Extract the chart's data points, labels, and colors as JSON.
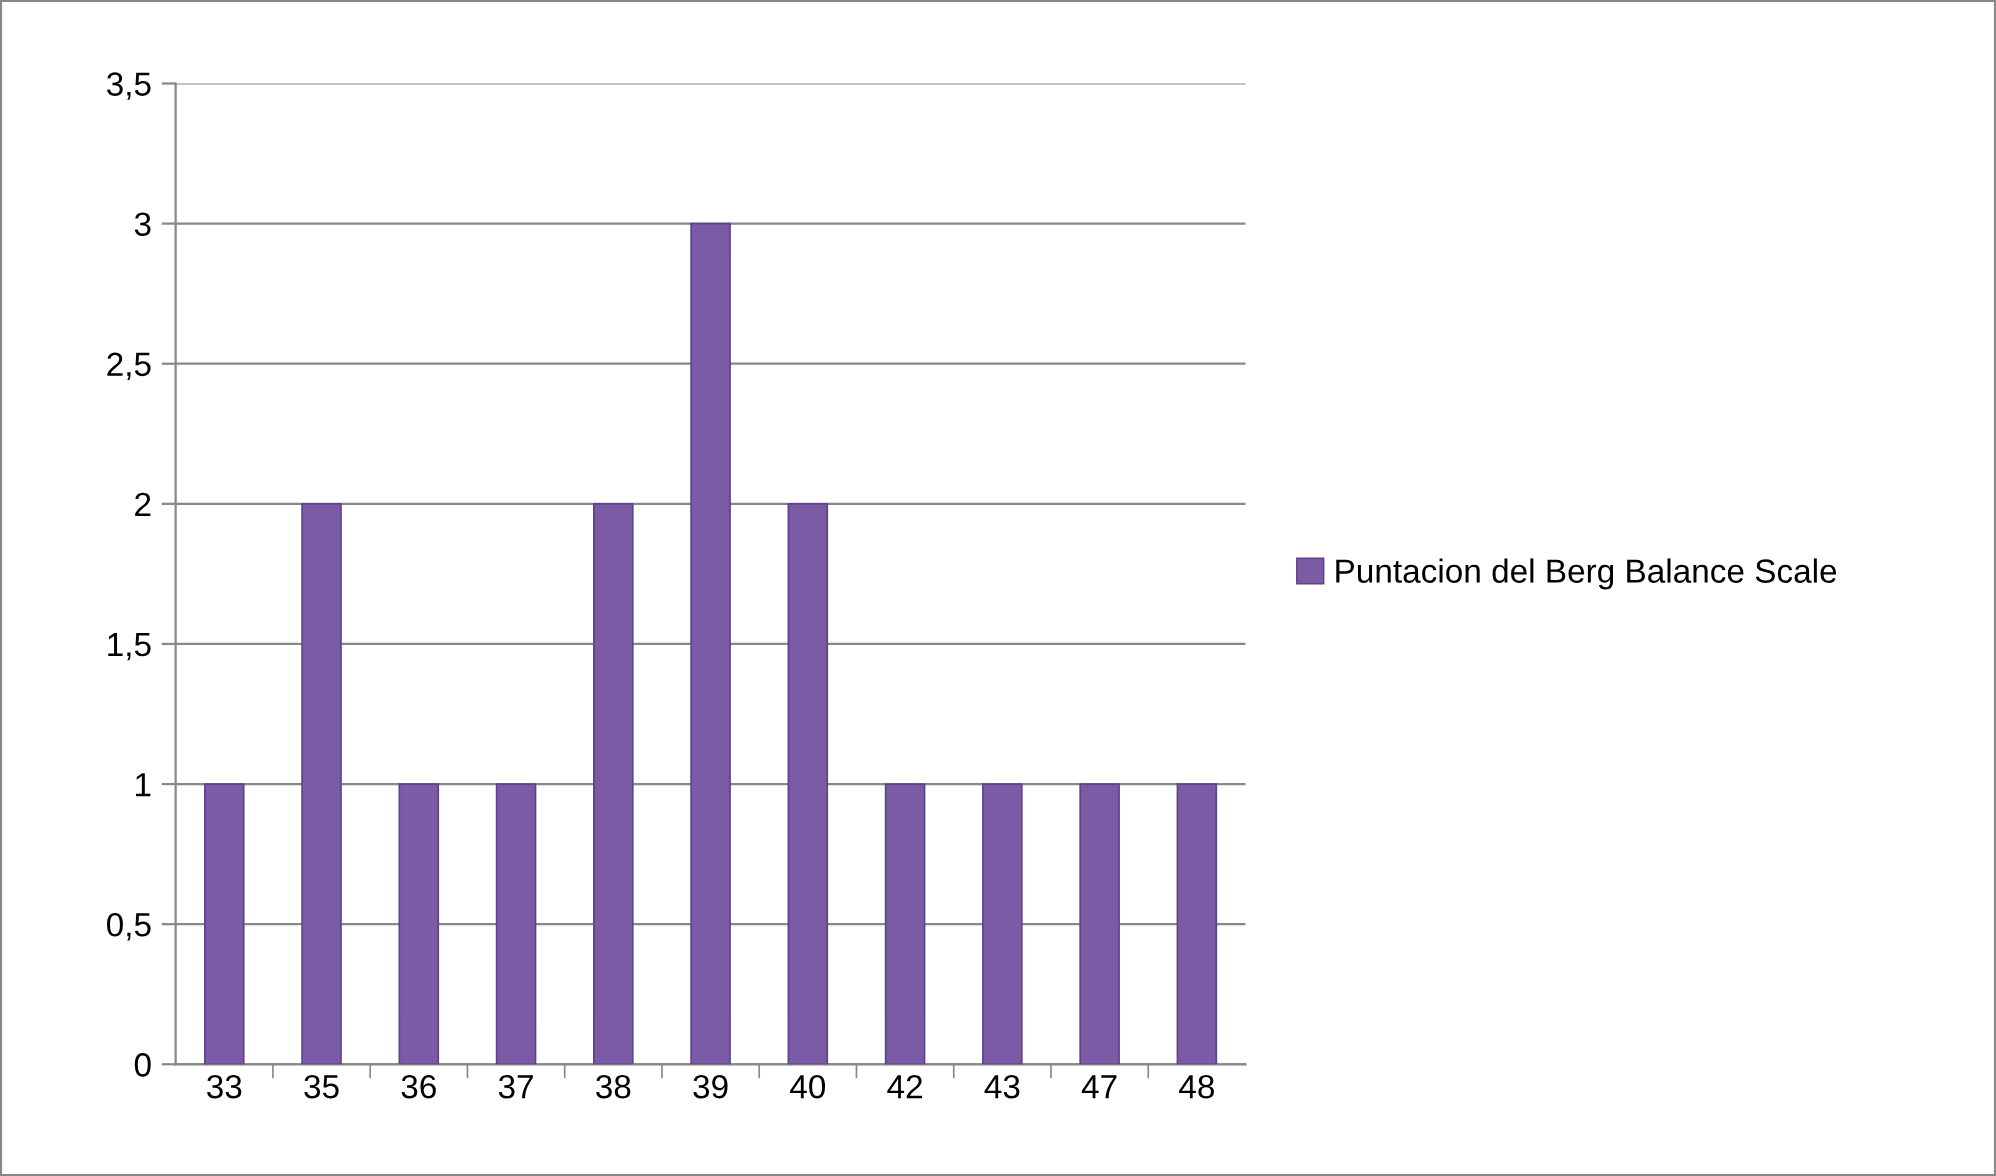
{
  "chart_data": {
    "type": "bar",
    "categories": [
      "33",
      "35",
      "36",
      "37",
      "38",
      "39",
      "40",
      "42",
      "43",
      "47",
      "48"
    ],
    "series": [
      {
        "name": "Puntacion del Berg Balance Scale",
        "color": "#7b5aa6",
        "values": [
          1,
          2,
          1,
          1,
          2,
          3,
          2,
          1,
          1,
          1,
          1
        ]
      }
    ],
    "ylim": [
      0,
      3.5
    ],
    "yticks": [
      0,
      {
        "value": 0.5,
        "label": "0,5"
      },
      1,
      {
        "value": 1.5,
        "label": "1,5"
      },
      2,
      {
        "value": 2.5,
        "label": "2,5"
      },
      3,
      {
        "value": 3.5,
        "label": "3,5"
      }
    ],
    "grid": "y",
    "legend": "right"
  }
}
